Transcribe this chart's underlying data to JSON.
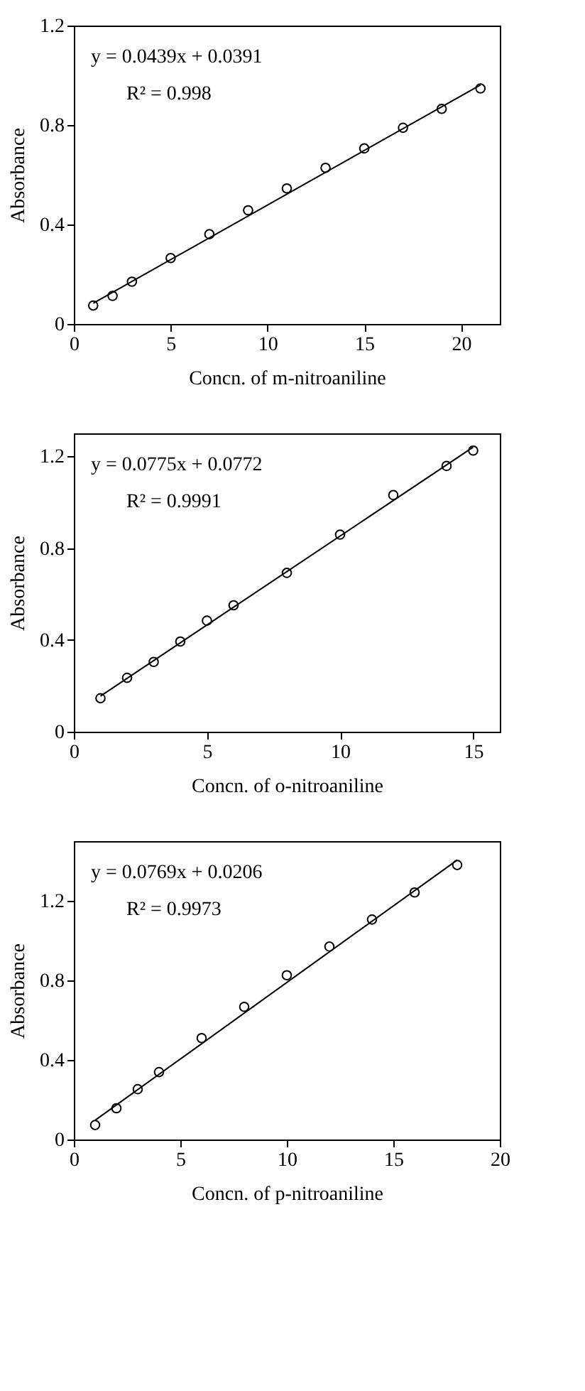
{
  "chart_data": [
    {
      "type": "scatter",
      "xlabel": "Concn. of m-nitroaniline",
      "ylabel": "Absorbance",
      "xlim": [
        0,
        22
      ],
      "ylim": [
        0,
        1.2
      ],
      "xticks": [
        0,
        5,
        10,
        15,
        20
      ],
      "yticks": [
        0,
        0.4,
        0.8,
        1.2
      ],
      "grid": false,
      "marker": "circle",
      "annotations": [
        "y = 0.0439x + 0.0391",
        "R² = 0.998"
      ],
      "series": [
        {
          "color": "#000000",
          "x": [
            1,
            2,
            3,
            5,
            7,
            9,
            11,
            13,
            15,
            17,
            19,
            21
          ],
          "values": [
            0.074,
            0.113,
            0.17,
            0.265,
            0.361,
            0.457,
            0.545,
            0.628,
            0.706,
            0.789,
            0.865,
            0.947
          ]
        },
        {
          "type": "line",
          "marker": "none",
          "line_style": "solid",
          "color": "#000000",
          "x": [
            1,
            21
          ],
          "values": [
            0.083,
            0.961
          ]
        }
      ]
    },
    {
      "type": "scatter",
      "xlabel": "Concn. of o-nitroaniline",
      "ylabel": "Absorbance",
      "xlim": [
        0,
        16
      ],
      "ylim": [
        0,
        1.3
      ],
      "xticks": [
        0,
        5,
        10,
        15
      ],
      "yticks": [
        0,
        0.4,
        0.8,
        1.2
      ],
      "grid": false,
      "marker": "circle",
      "annotations": [
        "y = 0.0775x + 0.0772",
        "R² = 0.9991"
      ],
      "series": [
        {
          "color": "#000000",
          "x": [
            1,
            2,
            3,
            4,
            5,
            6,
            8,
            10,
            12,
            14,
            15
          ],
          "values": [
            0.146,
            0.235,
            0.304,
            0.393,
            0.484,
            0.551,
            0.692,
            0.859,
            1.031,
            1.158,
            1.225
          ]
        },
        {
          "type": "line",
          "marker": "none",
          "line_style": "solid",
          "color": "#000000",
          "x": [
            1,
            15
          ],
          "values": [
            0.155,
            1.24
          ]
        }
      ]
    },
    {
      "type": "scatter",
      "xlabel": "Concn. of p-nitroaniline",
      "ylabel": "Absorbance",
      "xlim": [
        0,
        20
      ],
      "ylim": [
        0,
        1.5
      ],
      "xticks": [
        0,
        5,
        10,
        15,
        20
      ],
      "yticks": [
        0,
        0.4,
        0.8,
        1.2
      ],
      "grid": false,
      "marker": "circle",
      "annotations": [
        "y = 0.0769x + 0.0206",
        "R² = 0.9973"
      ],
      "series": [
        {
          "color": "#000000",
          "x": [
            1,
            2,
            3,
            4,
            6,
            8,
            10,
            12,
            14,
            16,
            18
          ],
          "values": [
            0.073,
            0.157,
            0.253,
            0.339,
            0.51,
            0.667,
            0.826,
            0.97,
            1.106,
            1.242,
            1.38
          ]
        },
        {
          "type": "line",
          "marker": "none",
          "line_style": "solid",
          "color": "#000000",
          "x": [
            1,
            18
          ],
          "values": [
            0.097,
            1.405
          ]
        }
      ]
    }
  ]
}
